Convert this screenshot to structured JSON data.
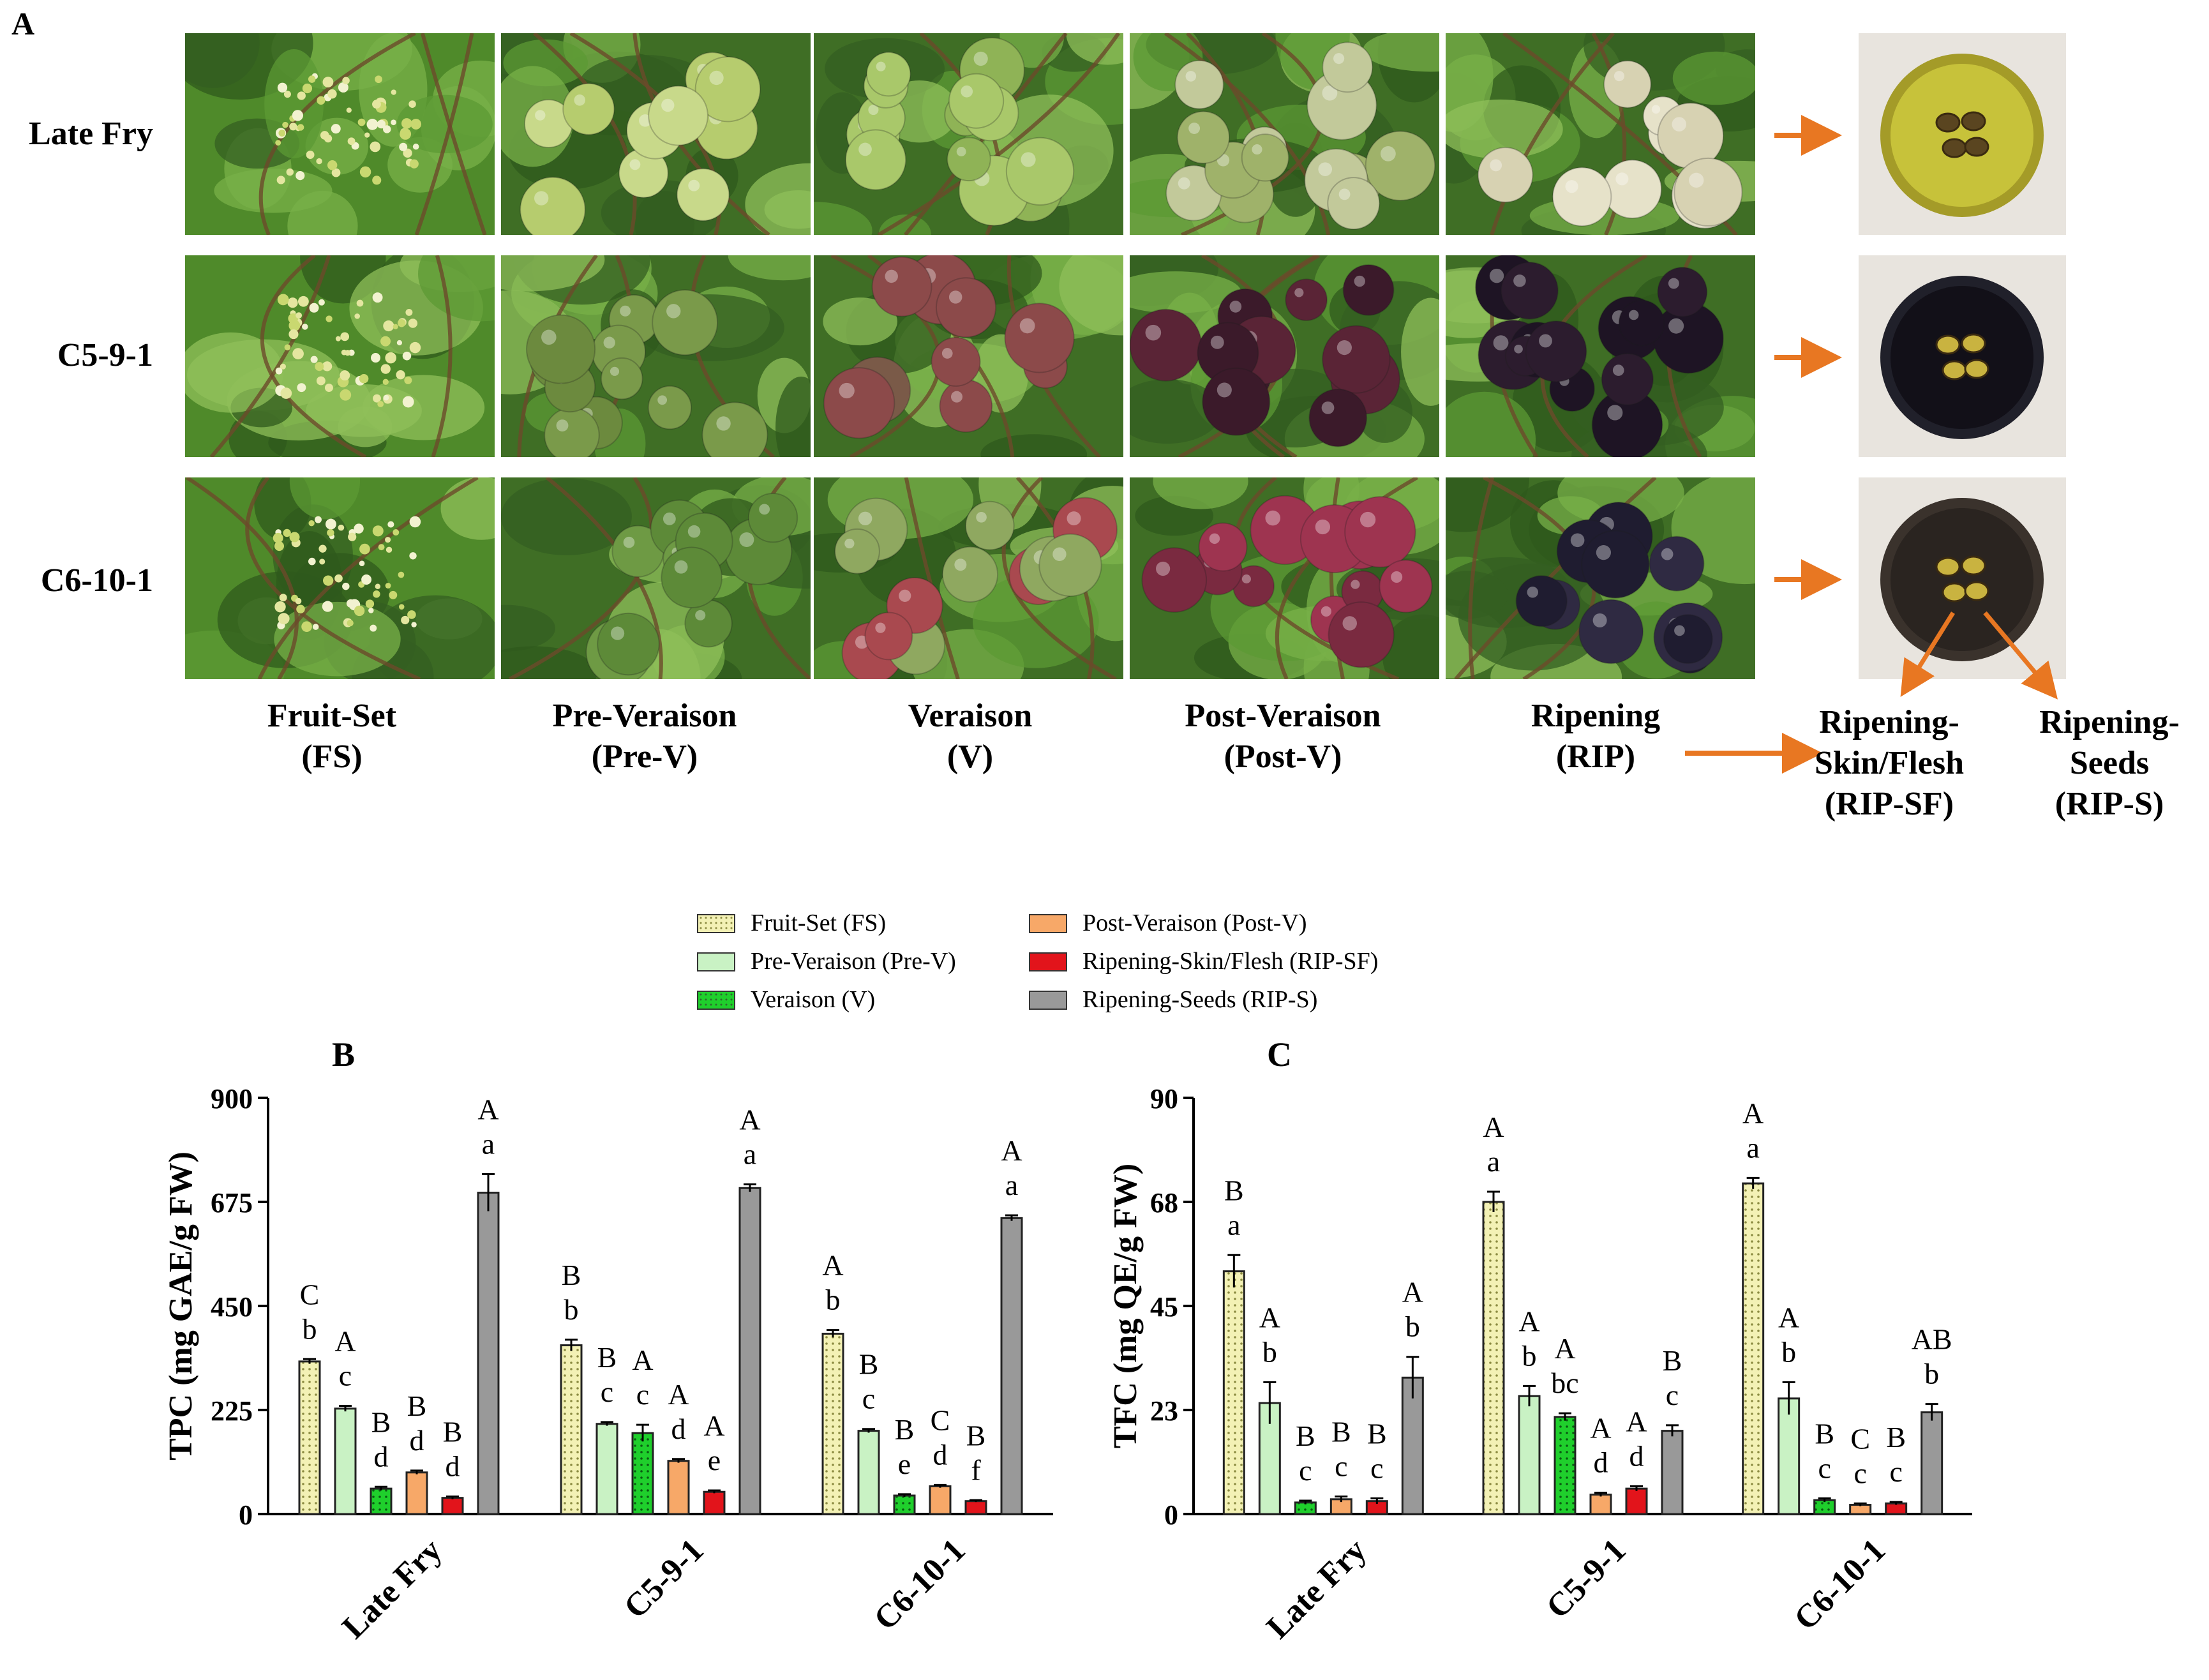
{
  "panel_a": {
    "letter": "A",
    "rows": [
      "Late Fry",
      "C5-9-1",
      "C6-10-1"
    ],
    "stages": [
      {
        "line1": "Fruit-Set",
        "line2": "(FS)"
      },
      {
        "line1": "Pre-Veraison",
        "line2": "(Pre-V)"
      },
      {
        "line1": "Veraison",
        "line2": "(V)"
      },
      {
        "line1": "Post-Veraison",
        "line2": "(Post-V)"
      },
      {
        "line1": "Ripening",
        "line2": "(RIP)"
      }
    ],
    "section_labels": [
      {
        "line1": "Ripening-",
        "line2": "Skin/Flesh",
        "line3": "(RIP-SF)"
      },
      {
        "line1": "Ripening-",
        "line2": "Seeds",
        "line3": "(RIP-S)"
      }
    ],
    "arrow_color": "#e87722"
  },
  "legend": [
    {
      "label": "Fruit-Set (FS)",
      "color": "#f3f1b5",
      "pattern": "dots"
    },
    {
      "label": "Pre-Veraison (Pre-V)",
      "color": "#c9f2c4",
      "pattern": "none"
    },
    {
      "label": "Veraison (V)",
      "color": "#1fcf2c",
      "pattern": "dots"
    },
    {
      "label": "Post-Veraison (Post-V)",
      "color": "#f7a868",
      "pattern": "none"
    },
    {
      "label": "Ripening-Skin/Flesh (RIP-SF)",
      "color": "#e2141b",
      "pattern": "none"
    },
    {
      "label": "Ripening-Seeds (RIP-S)",
      "color": "#999999",
      "pattern": "none"
    }
  ],
  "chart_data": [
    {
      "panel": "B",
      "type": "bar",
      "ylabel": "TPC (mg GAE/g FW)",
      "ylim": [
        0,
        900
      ],
      "yticks": [
        "0",
        "225",
        "450",
        "675",
        "900"
      ],
      "categories": [
        "Late Fry",
        "C5-9-1",
        "C6-10-1"
      ],
      "series": [
        {
          "name": "Fruit-Set (FS)",
          "values": [
            330,
            365,
            390
          ],
          "errors": [
            5,
            12,
            8
          ],
          "letters": [
            [
              "C",
              "b"
            ],
            [
              "B",
              "b"
            ],
            [
              "A",
              "b"
            ]
          ]
        },
        {
          "name": "Pre-Veraison (Pre-V)",
          "values": [
            228,
            195,
            180
          ],
          "errors": [
            6,
            4,
            4
          ],
          "letters": [
            [
              "A",
              "c"
            ],
            [
              "B",
              "c"
            ],
            [
              "B",
              "c"
            ]
          ]
        },
        {
          "name": "Veraison (V)",
          "values": [
            55,
            175,
            40
          ],
          "errors": [
            4,
            18,
            3
          ],
          "letters": [
            [
              "B",
              "d"
            ],
            [
              "A",
              "c"
            ],
            [
              "B",
              "e"
            ]
          ]
        },
        {
          "name": "Post-Veraison (Post-V)",
          "values": [
            90,
            115,
            60
          ],
          "errors": [
            4,
            4,
            3
          ],
          "letters": [
            [
              "B",
              "d"
            ],
            [
              "A",
              "d"
            ],
            [
              "C",
              "d"
            ]
          ]
        },
        {
          "name": "Ripening-Skin/Flesh (RIP-SF)",
          "values": [
            35,
            48,
            28
          ],
          "errors": [
            3,
            3,
            2
          ],
          "letters": [
            [
              "B",
              "d"
            ],
            [
              "A",
              "e"
            ],
            [
              "B",
              "f"
            ]
          ]
        },
        {
          "name": "Ripening-Seeds (RIP-S)",
          "values": [
            695,
            705,
            640
          ],
          "errors": [
            40,
            8,
            6
          ],
          "letters": [
            [
              "A",
              "a"
            ],
            [
              "A",
              "a"
            ],
            [
              "A",
              "a"
            ]
          ]
        }
      ]
    },
    {
      "panel": "C",
      "type": "bar",
      "ylabel": "TFC (mg QE/g FW)",
      "ylim": [
        0,
        90
      ],
      "yticks": [
        "0",
        "23",
        "45",
        "68",
        "90"
      ],
      "categories": [
        "Late Fry",
        "C5-9-1",
        "C6-10-1"
      ],
      "series": [
        {
          "name": "Fruit-Set (FS)",
          "values": [
            52.5,
            67.5,
            71.5
          ],
          "errors": [
            3.5,
            2.2,
            1.2
          ],
          "letters": [
            [
              "B",
              "a"
            ],
            [
              "A",
              "a"
            ],
            [
              "A",
              "a"
            ]
          ]
        },
        {
          "name": "Pre-Veraison (Pre-V)",
          "values": [
            24.0,
            25.5,
            25.0
          ],
          "errors": [
            4.5,
            2.2,
            3.5
          ],
          "letters": [
            [
              "A",
              "b"
            ],
            [
              "A",
              "b"
            ],
            [
              "A",
              "b"
            ]
          ]
        },
        {
          "name": "Veraison (V)",
          "values": [
            2.5,
            21.0,
            3.0
          ],
          "errors": [
            0.4,
            0.8,
            0.4
          ],
          "letters": [
            [
              "B",
              "c"
            ],
            [
              "A",
              "bc"
            ],
            [
              "B",
              "c"
            ]
          ]
        },
        {
          "name": "Post-Veraison (Post-V)",
          "values": [
            3.2,
            4.2,
            2.0
          ],
          "errors": [
            0.6,
            0.4,
            0.3
          ],
          "letters": [
            [
              "B",
              "c"
            ],
            [
              "A",
              "d"
            ],
            [
              "C",
              "c"
            ]
          ]
        },
        {
          "name": "Ripening-Skin/Flesh (RIP-SF)",
          "values": [
            2.8,
            5.5,
            2.3
          ],
          "errors": [
            0.6,
            0.5,
            0.3
          ],
          "letters": [
            [
              "B",
              "c"
            ],
            [
              "A",
              "d"
            ],
            [
              "B",
              "c"
            ]
          ]
        },
        {
          "name": "Ripening-Seeds (RIP-S)",
          "values": [
            29.5,
            18.0,
            22.0
          ],
          "errors": [
            4.5,
            1.2,
            1.8
          ],
          "letters": [
            [
              "A",
              "b"
            ],
            [
              "B",
              "c"
            ],
            [
              "AB",
              "b"
            ]
          ]
        }
      ]
    }
  ]
}
